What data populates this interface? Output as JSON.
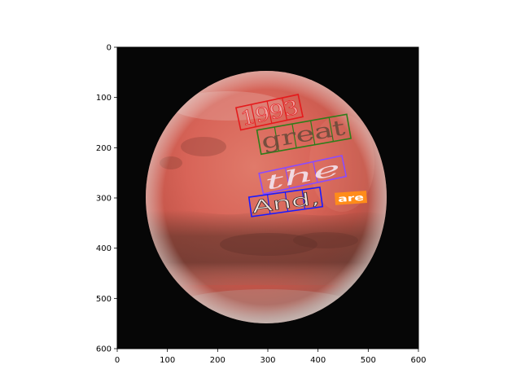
{
  "chart_data": {
    "type": "image",
    "xlim": [
      0,
      600
    ],
    "ylim": [
      600,
      0
    ],
    "x_ticks": [
      "0",
      "100",
      "200",
      "300",
      "400",
      "500",
      "600"
    ],
    "y_ticks": [
      "0",
      "100",
      "200",
      "300",
      "400",
      "500",
      "600"
    ],
    "annotations": [
      {
        "text": "1993",
        "color": "#e41a1c"
      },
      {
        "text": "great",
        "color": "#2e7d1a"
      },
      {
        "text": "the",
        "color": "#8a4bff"
      },
      {
        "text": "And,",
        "color": "#1a1aff"
      },
      {
        "text": "are",
        "color": "#ff8c1a"
      }
    ]
  }
}
